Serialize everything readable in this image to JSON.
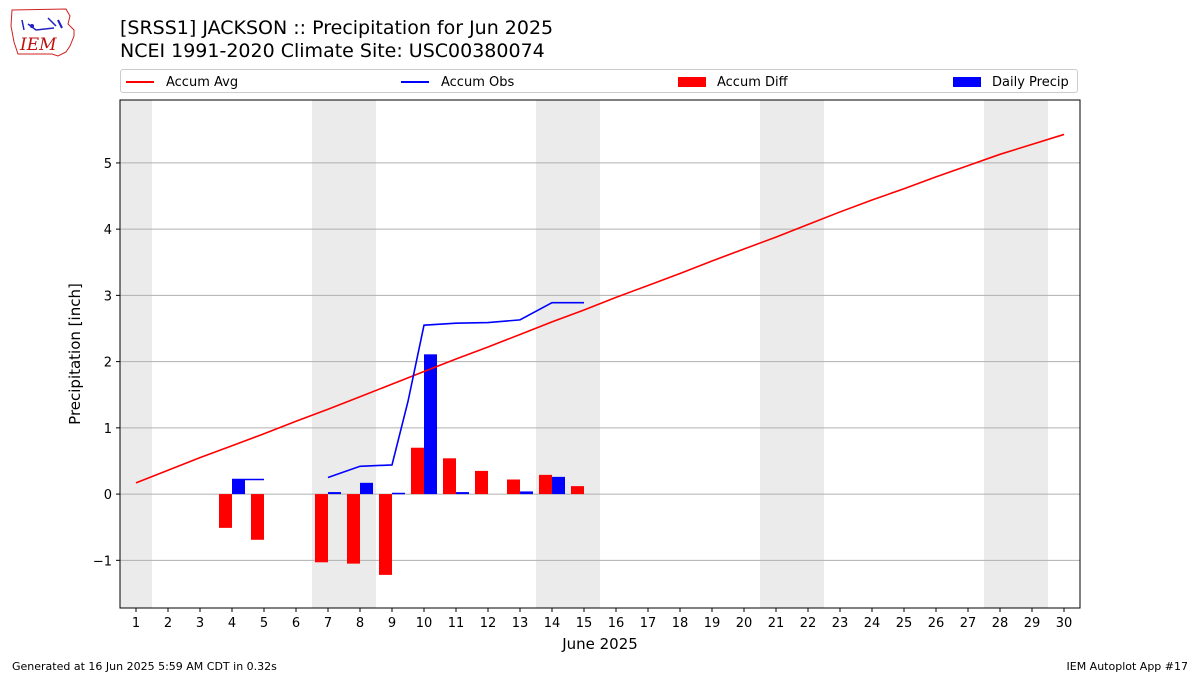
{
  "title_line1": "[SRSS1] JACKSON :: Precipitation for Jun 2025",
  "title_line2": "NCEI 1991-2020 Climate Site: USC00380074",
  "logo_text": "IEM",
  "footer_left": "Generated at 16 Jun 2025 5:59 AM CDT in 0.32s",
  "footer_right": "IEM Autoplot App #17",
  "legend": [
    {
      "label": "Accum Avg",
      "kind": "line",
      "color": "#ff0000"
    },
    {
      "label": "Accum Obs",
      "kind": "line",
      "color": "#0000ff"
    },
    {
      "label": "Accum Diff",
      "kind": "patch",
      "color": "#ff0000"
    },
    {
      "label": "Daily Precip",
      "kind": "patch",
      "color": "#0000ff"
    }
  ],
  "chart_data": {
    "type": "bar",
    "xlabel": "June 2025",
    "ylabel": "Precipitation [inch]",
    "xlim": [
      0.5,
      30.5
    ],
    "ylim": [
      -1.72,
      5.95
    ],
    "x_ticks": [
      1,
      2,
      3,
      4,
      5,
      6,
      7,
      8,
      9,
      10,
      11,
      12,
      13,
      14,
      15,
      16,
      17,
      18,
      19,
      20,
      21,
      22,
      23,
      24,
      25,
      26,
      27,
      28,
      29,
      30
    ],
    "y_ticks": [
      -1,
      0,
      1,
      2,
      3,
      4,
      5
    ],
    "y_tick_labels": [
      "−1",
      "0",
      "1",
      "2",
      "3",
      "4",
      "5"
    ],
    "grid": "y",
    "weekend_bands": [
      [
        0.5,
        1.5
      ],
      [
        6.5,
        8.5
      ],
      [
        13.5,
        15.5
      ],
      [
        20.5,
        22.5
      ],
      [
        27.5,
        29.5
      ]
    ],
    "band_color": "#ebebeb",
    "accum_avg": {
      "name": "Accum Avg",
      "color": "#ff0000",
      "x": [
        1,
        2,
        3,
        4,
        5,
        6,
        7,
        8,
        9,
        10,
        11,
        12,
        13,
        14,
        15,
        16,
        17,
        18,
        19,
        20,
        21,
        22,
        23,
        24,
        25,
        26,
        27,
        28,
        29,
        30
      ],
      "values": [
        0.17,
        0.36,
        0.55,
        0.73,
        0.91,
        1.1,
        1.28,
        1.47,
        1.66,
        1.85,
        2.04,
        2.22,
        2.41,
        2.6,
        2.78,
        2.97,
        3.15,
        3.33,
        3.52,
        3.7,
        3.88,
        4.07,
        4.26,
        4.44,
        4.61,
        4.79,
        4.96,
        5.13,
        5.28,
        5.43
      ]
    },
    "accum_obs": {
      "name": "Accum Obs",
      "color": "#0000ff",
      "segments": [
        {
          "x": [
            4,
            5
          ],
          "values": [
            0.22,
            0.22
          ]
        },
        {
          "x": [
            7,
            8,
            9,
            9.5,
            10,
            11,
            12,
            13,
            14,
            15
          ],
          "values": [
            0.25,
            0.42,
            0.44,
            1.4,
            2.55,
            2.58,
            2.59,
            2.63,
            2.89,
            2.89
          ]
        }
      ]
    },
    "accum_diff": {
      "name": "Accum Diff",
      "color": "#ff0000",
      "x": [
        4,
        5,
        7,
        8,
        9,
        10,
        11,
        12,
        13,
        14,
        15
      ],
      "values": [
        -0.51,
        -0.69,
        -1.03,
        -1.05,
        -1.22,
        0.7,
        0.54,
        0.35,
        0.22,
        0.29,
        0.12
      ]
    },
    "daily_precip": {
      "name": "Daily Precip",
      "color": "#0000ff",
      "x": [
        4,
        7,
        8,
        9,
        10,
        11,
        13,
        14
      ],
      "values": [
        0.22,
        0.03,
        0.17,
        0.02,
        2.11,
        0.03,
        0.04,
        0.26
      ]
    }
  }
}
